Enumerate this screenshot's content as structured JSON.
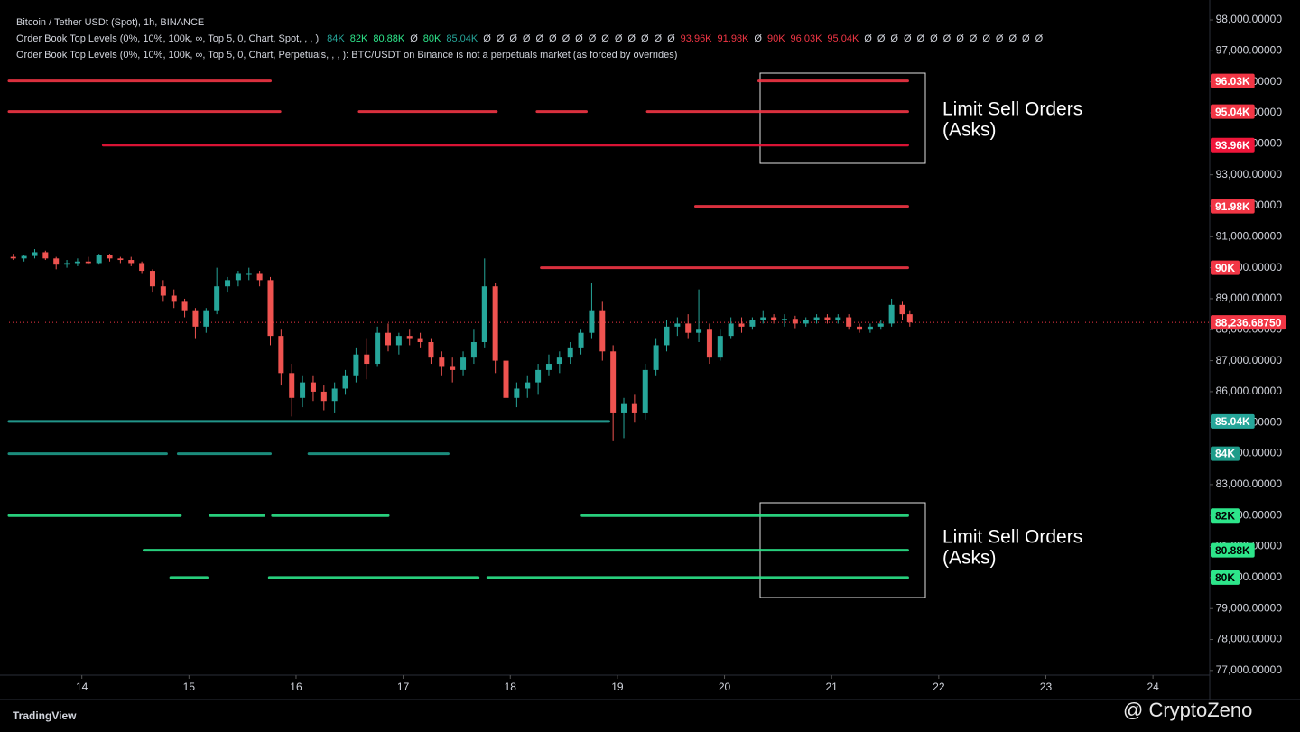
{
  "chart_data": {
    "type": "candlestick",
    "title": "Bitcoin / Tether USDt (Spot), 1h, BINANCE",
    "indicator_spot": "Order Book Top Levels (0%, 10%, 100k, ∞, Top 5, 0, Chart, Spot, , , )",
    "indicator_spot_items": [
      {
        "text": "84K",
        "color": "#26a69a"
      },
      {
        "text": "82K",
        "color": "#2de58a"
      },
      {
        "text": "80.88K",
        "color": "#2de58a"
      },
      {
        "text": "Ø",
        "color": "#d1d4dc"
      },
      {
        "text": "80K",
        "color": "#2de58a"
      },
      {
        "text": "85.04K",
        "color": "#26a69a"
      },
      {
        "text": "Ø",
        "color": "#d1d4dc"
      },
      {
        "text": "Ø",
        "color": "#d1d4dc"
      },
      {
        "text": "Ø",
        "color": "#d1d4dc"
      },
      {
        "text": "Ø",
        "color": "#d1d4dc"
      },
      {
        "text": "Ø",
        "color": "#d1d4dc"
      },
      {
        "text": "Ø",
        "color": "#d1d4dc"
      },
      {
        "text": "Ø",
        "color": "#d1d4dc"
      },
      {
        "text": "Ø",
        "color": "#d1d4dc"
      },
      {
        "text": "Ø",
        "color": "#d1d4dc"
      },
      {
        "text": "Ø",
        "color": "#d1d4dc"
      },
      {
        "text": "Ø",
        "color": "#d1d4dc"
      },
      {
        "text": "Ø",
        "color": "#d1d4dc"
      },
      {
        "text": "Ø",
        "color": "#d1d4dc"
      },
      {
        "text": "Ø",
        "color": "#d1d4dc"
      },
      {
        "text": "Ø",
        "color": "#d1d4dc"
      },
      {
        "text": "93.96K",
        "color": "#f23645"
      },
      {
        "text": "91.98K",
        "color": "#f23645"
      },
      {
        "text": "Ø",
        "color": "#d1d4dc"
      },
      {
        "text": "90K",
        "color": "#f23645"
      },
      {
        "text": "96.03K",
        "color": "#f23645"
      },
      {
        "text": "95.04K",
        "color": "#f23645"
      },
      {
        "text": "Ø",
        "color": "#d1d4dc"
      },
      {
        "text": "Ø",
        "color": "#d1d4dc"
      },
      {
        "text": "Ø",
        "color": "#d1d4dc"
      },
      {
        "text": "Ø",
        "color": "#d1d4dc"
      },
      {
        "text": "Ø",
        "color": "#d1d4dc"
      },
      {
        "text": "Ø",
        "color": "#d1d4dc"
      },
      {
        "text": "Ø",
        "color": "#d1d4dc"
      },
      {
        "text": "Ø",
        "color": "#d1d4dc"
      },
      {
        "text": "Ø",
        "color": "#d1d4dc"
      },
      {
        "text": "Ø",
        "color": "#d1d4dc"
      },
      {
        "text": "Ø",
        "color": "#d1d4dc"
      },
      {
        "text": "Ø",
        "color": "#d1d4dc"
      },
      {
        "text": "Ø",
        "color": "#d1d4dc"
      },
      {
        "text": "Ø",
        "color": "#d1d4dc"
      }
    ],
    "indicator_perp": "Order Book Top Levels (0%, 10%, 100k, ∞, Top 5, 0, Chart, Perpetuals, , , ): BTC/USDT on Binance is not a perpetuals market (as forced by overrides)",
    "x": [
      13.36,
      13.46,
      13.56,
      13.66,
      13.76,
      13.86,
      13.96,
      14.06,
      14.16,
      14.26,
      14.36,
      14.46,
      14.56,
      14.66,
      14.76,
      14.86,
      14.96,
      15.06,
      15.16,
      15.26,
      15.36,
      15.46,
      15.56,
      15.66,
      15.76,
      15.86,
      15.96,
      16.06,
      16.16,
      16.26,
      16.36,
      16.46,
      16.56,
      16.66,
      16.76,
      16.86,
      16.96,
      17.06,
      17.16,
      17.26,
      17.36,
      17.46,
      17.56,
      17.66,
      17.76,
      17.86,
      17.96,
      18.06,
      18.16,
      18.26,
      18.36,
      18.46,
      18.56,
      18.66,
      18.76,
      18.86,
      18.96,
      19.06,
      19.16,
      19.26,
      19.36,
      19.46,
      19.56,
      19.66,
      19.76,
      19.86,
      19.96,
      20.06,
      20.16,
      20.26,
      20.36,
      20.46,
      20.56,
      20.66,
      20.76,
      20.86,
      20.96,
      21.06,
      21.16,
      21.26,
      21.36,
      21.46,
      21.56,
      21.66,
      21.73
    ],
    "open": [
      90350,
      90300,
      90380,
      90500,
      90300,
      90100,
      90150,
      90200,
      90150,
      90400,
      90300,
      90250,
      90150,
      89900,
      89400,
      89100,
      88900,
      88600,
      88100,
      88600,
      89400,
      89600,
      89800,
      89800,
      89600,
      87800,
      86600,
      85800,
      86300,
      86000,
      85700,
      86100,
      86500,
      87200,
      86900,
      87900,
      87500,
      87800,
      87700,
      87600,
      87100,
      86800,
      86700,
      87100,
      87600,
      89400,
      87000,
      85800,
      86100,
      86300,
      86700,
      86900,
      87100,
      87400,
      87900,
      88600,
      87300,
      85300,
      85600,
      85300,
      86700,
      87500,
      88100,
      88200,
      87900,
      88000,
      87100,
      87800,
      88200,
      88100,
      88300,
      88400,
      88300,
      88350,
      88200,
      88300,
      88400,
      88300,
      88400,
      88100,
      88000,
      88100,
      88200,
      88800,
      88500
    ],
    "high": [
      90450,
      90420,
      90600,
      90550,
      90350,
      90250,
      90300,
      90350,
      90450,
      90450,
      90350,
      90350,
      90200,
      89950,
      89600,
      89300,
      89000,
      88700,
      88700,
      90000,
      89700,
      89900,
      90000,
      89900,
      89700,
      88000,
      86900,
      86500,
      86500,
      86200,
      86300,
      86700,
      87400,
      87700,
      88100,
      88200,
      87900,
      88000,
      87900,
      87700,
      87300,
      87100,
      87300,
      88000,
      90300,
      89500,
      87100,
      86300,
      86500,
      86900,
      87200,
      87300,
      87600,
      88000,
      89500,
      88900,
      87500,
      85800,
      85900,
      86900,
      87700,
      88300,
      88400,
      88500,
      89300,
      88200,
      88000,
      88400,
      88400,
      88400,
      88600,
      88500,
      88500,
      88450,
      88400,
      88500,
      88500,
      88500,
      88500,
      88200,
      88200,
      88300,
      89000,
      88900,
      88600
    ],
    "low": [
      90250,
      90200,
      90300,
      90250,
      89950,
      90000,
      90050,
      90100,
      90100,
      90200,
      90150,
      90050,
      89800,
      89200,
      88900,
      88700,
      88400,
      87700,
      87900,
      88500,
      89200,
      89400,
      89600,
      89400,
      87500,
      86200,
      85200,
      85500,
      85700,
      85400,
      85300,
      85900,
      86300,
      86400,
      86800,
      87300,
      87200,
      87500,
      87400,
      86900,
      86500,
      86300,
      86500,
      86900,
      87400,
      86600,
      85300,
      85500,
      85800,
      85900,
      86500,
      86600,
      86900,
      87200,
      87700,
      87000,
      84400,
      84500,
      85000,
      85100,
      86500,
      87300,
      87800,
      87700,
      87600,
      86900,
      87000,
      87700,
      87900,
      88000,
      88200,
      88200,
      88100,
      88050,
      88100,
      88200,
      88200,
      88200,
      88000,
      87900,
      87900,
      88000,
      88100,
      88300,
      88100
    ],
    "close": [
      90300,
      90380,
      90500,
      90300,
      90100,
      90150,
      90200,
      90150,
      90400,
      90300,
      90250,
      90150,
      89900,
      89400,
      89100,
      88900,
      88600,
      88100,
      88600,
      89400,
      89600,
      89800,
      89800,
      89600,
      87800,
      86600,
      85800,
      86300,
      86000,
      85700,
      86100,
      86500,
      87200,
      86900,
      87900,
      87500,
      87800,
      87700,
      87600,
      87100,
      86800,
      86700,
      87100,
      87600,
      89400,
      87000,
      85800,
      86100,
      86300,
      86700,
      86900,
      87100,
      87400,
      87900,
      88600,
      87300,
      85300,
      85600,
      85300,
      86700,
      87500,
      88100,
      88200,
      87900,
      88000,
      87100,
      87800,
      88200,
      88100,
      88300,
      88400,
      88300,
      88350,
      88200,
      88300,
      88400,
      88300,
      88400,
      88100,
      88000,
      88100,
      88200,
      88800,
      88500,
      88236.6875
    ],
    "up_color": "#26a69a",
    "down_color": "#ef5350",
    "xlim": [
      13.32,
      24.53
    ],
    "xticks": [
      14,
      15,
      16,
      17,
      18,
      19,
      20,
      21,
      22,
      23,
      24
    ],
    "ylim": [
      76850,
      98350
    ],
    "yticks": [
      {
        "value": 77000,
        "label": "77,000.00000"
      },
      {
        "value": 78000,
        "label": "78,000.00000"
      },
      {
        "value": 79000,
        "label": "79,000.00000"
      },
      {
        "value": 80000,
        "label": "80,000.00000"
      },
      {
        "value": 81000,
        "label": "81,000.00000"
      },
      {
        "value": 82000,
        "label": "82,000.00000"
      },
      {
        "value": 83000,
        "label": "83,000.00000"
      },
      {
        "value": 84000,
        "label": "84,000.00000"
      },
      {
        "value": 85000,
        "label": "85,000.00000"
      },
      {
        "value": 86000,
        "label": "86,000.00000"
      },
      {
        "value": 87000,
        "label": "87,000.00000"
      },
      {
        "value": 88000,
        "label": "88,000.00000"
      },
      {
        "value": 89000,
        "label": "89,000.00000"
      },
      {
        "value": 90000,
        "label": "90,000.00000"
      },
      {
        "value": 91000,
        "label": "91,000.00000"
      },
      {
        "value": 92000,
        "label": "92,000.00000"
      },
      {
        "value": 93000,
        "label": "93,000.00000"
      },
      {
        "value": 94000,
        "label": "94,000.00000"
      },
      {
        "value": 95000,
        "label": "95,000.00000"
      },
      {
        "value": 96000,
        "label": "96,000.00000"
      },
      {
        "value": 97000,
        "label": "97,000.00000"
      },
      {
        "value": 98000,
        "label": "98,000.00000"
      }
    ],
    "last_price": {
      "value": 88236.6875,
      "label": "88,236.68750",
      "color": "#f23645"
    },
    "levels": [
      {
        "label": "96.03K",
        "value": 96030,
        "color": "#f23645",
        "segments": [
          [
            13.32,
            15.76
          ],
          [
            20.32,
            21.71
          ]
        ]
      },
      {
        "label": "95.04K",
        "value": 95040,
        "color": "#f23645",
        "segments": [
          [
            13.32,
            15.85
          ],
          [
            16.59,
            17.87
          ],
          [
            18.25,
            18.71
          ],
          [
            19.28,
            21.71
          ]
        ]
      },
      {
        "label": "93.96K",
        "value": 93960,
        "color": "#f0163a",
        "segments": [
          [
            14.2,
            21.71
          ]
        ]
      },
      {
        "label": "91.98K",
        "value": 91980,
        "color": "#f23645",
        "segments": [
          [
            19.73,
            21.71
          ]
        ]
      },
      {
        "label": "90K",
        "value": 90000,
        "color": "#f23645",
        "segments": [
          [
            18.29,
            21.71
          ]
        ]
      },
      {
        "label": "85.04K",
        "value": 85040,
        "color": "#26a69a",
        "segments": [
          [
            13.32,
            18.92
          ]
        ]
      },
      {
        "label": "84K",
        "value": 84000,
        "color": "#1e9c8a",
        "segments": [
          [
            13.32,
            14.79
          ],
          [
            14.9,
            15.76
          ],
          [
            16.12,
            17.42
          ]
        ]
      },
      {
        "label": "82K",
        "value": 82000,
        "color": "#2de58a",
        "segments": [
          [
            13.32,
            14.92
          ],
          [
            15.2,
            15.7
          ],
          [
            15.78,
            16.86
          ],
          [
            18.67,
            21.71
          ]
        ]
      },
      {
        "label": "80.88K",
        "value": 80880,
        "color": "#2de58a",
        "segments": [
          [
            14.58,
            21.71
          ]
        ]
      },
      {
        "label": "80K",
        "value": 80000,
        "color": "#2de58a",
        "segments": [
          [
            14.83,
            15.17
          ],
          [
            15.75,
            17.7
          ],
          [
            17.79,
            21.71
          ]
        ]
      }
    ],
    "annotations": [
      {
        "line1": "Limit Sell Orders",
        "line2": "(Asks)"
      },
      {
        "line1": "Limit Sell Orders",
        "line2": "(Asks)"
      }
    ]
  },
  "branding": "TradingView",
  "watermark": "@ CryptoZeno"
}
